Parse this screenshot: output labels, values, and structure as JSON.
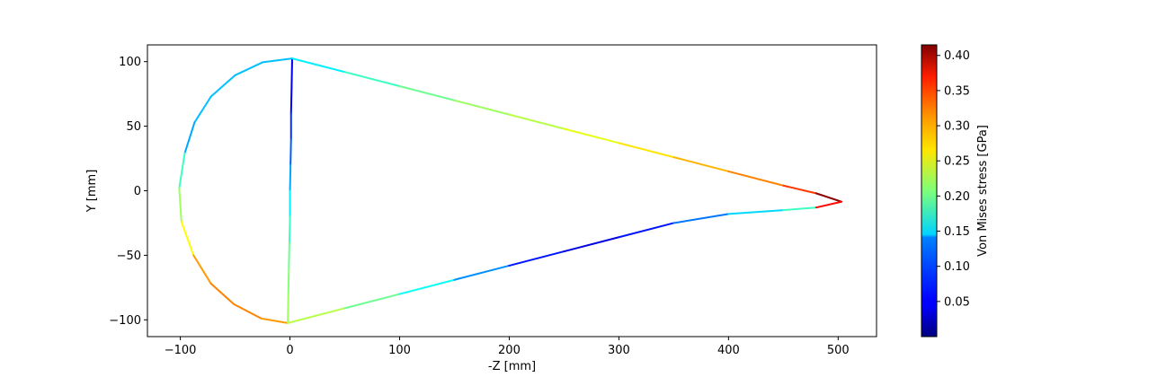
{
  "chart_data": {
    "type": "line",
    "xlabel": "-Z [mm]",
    "ylabel": "Y [mm]",
    "xlim": [
      -130,
      535
    ],
    "ylim": [
      -113,
      113
    ],
    "xticks": [
      -100,
      0,
      100,
      200,
      300,
      400,
      500
    ],
    "yticks": [
      -100,
      -50,
      0,
      50,
      100
    ],
    "xtick_labels": [
      "−100",
      "0",
      "100",
      "200",
      "300",
      "400",
      "500"
    ],
    "ytick_labels": [
      "−100",
      "−50",
      "0",
      "50",
      "100"
    ],
    "grid": false,
    "colormap": "jet",
    "colorbar": {
      "label": "Von Mises stress [GPa]",
      "min": 0.0,
      "max": 0.415,
      "ticks": [
        0.05,
        0.1,
        0.15,
        0.2,
        0.25,
        0.3,
        0.35,
        0.4
      ],
      "tick_labels": [
        "0.05",
        "0.10",
        "0.15",
        "0.20",
        "0.25",
        "0.30",
        "0.35",
        "0.40"
      ]
    },
    "series": [
      {
        "points": [
          [
            2,
            102.5
          ],
          [
            -25,
            99.5
          ],
          [
            -50,
            89.5
          ],
          [
            -72,
            73
          ],
          [
            -87,
            53
          ],
          [
            -96,
            29
          ],
          [
            -101,
            2
          ],
          [
            -99,
            -24
          ],
          [
            -88,
            -50
          ],
          [
            -72,
            -72
          ],
          [
            -51,
            -88
          ],
          [
            -26,
            -99
          ],
          [
            -2,
            -102.5
          ]
        ],
        "stress": [
          0.13,
          0.13,
          0.13,
          0.13,
          0.12,
          0.18,
          0.22,
          0.26,
          0.3,
          0.31,
          0.31,
          0.3
        ]
      },
      {
        "points": [
          [
            2,
            102.5
          ],
          [
            1.5,
            80
          ],
          [
            1,
            60
          ],
          [
            1,
            40
          ],
          [
            0.5,
            20
          ],
          [
            0,
            0
          ],
          [
            0,
            -20
          ],
          [
            -0.5,
            -40
          ],
          [
            -1,
            -60
          ],
          [
            -1.5,
            -80
          ],
          [
            -2,
            -102.5
          ]
        ],
        "stress": [
          0.04,
          0.05,
          0.07,
          0.09,
          0.12,
          0.15,
          0.18,
          0.2,
          0.21,
          0.22
        ]
      },
      {
        "points": [
          [
            2,
            102.5
          ],
          [
            50,
            92
          ],
          [
            100,
            81
          ],
          [
            150,
            70
          ],
          [
            200,
            59
          ],
          [
            250,
            48
          ],
          [
            300,
            37
          ],
          [
            350,
            26
          ],
          [
            400,
            15
          ],
          [
            450,
            4
          ],
          [
            480,
            -2
          ],
          [
            503,
            -8.5
          ]
        ],
        "stress": [
          0.15,
          0.18,
          0.2,
          0.22,
          0.23,
          0.25,
          0.27,
          0.29,
          0.31,
          0.34,
          0.41
        ]
      },
      {
        "points": [
          [
            -2,
            -102.5
          ],
          [
            50,
            -91
          ],
          [
            100,
            -80
          ],
          [
            150,
            -69
          ],
          [
            200,
            -58
          ],
          [
            250,
            -47
          ],
          [
            300,
            -36
          ],
          [
            350,
            -25
          ],
          [
            400,
            -18
          ],
          [
            450,
            -15
          ],
          [
            480,
            -13
          ],
          [
            503,
            -8.5
          ]
        ],
        "stress": [
          0.23,
          0.2,
          0.16,
          0.11,
          0.06,
          0.04,
          0.06,
          0.1,
          0.14,
          0.18,
          0.36
        ]
      }
    ]
  }
}
